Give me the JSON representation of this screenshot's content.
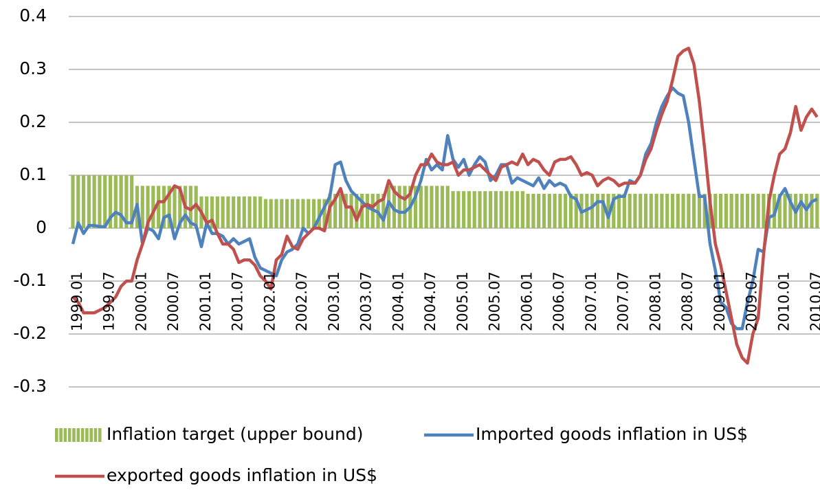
{
  "chart_data": {
    "type": "combo",
    "categories": [
      "1999.01",
      null,
      null,
      null,
      null,
      null,
      "1999.07",
      null,
      null,
      null,
      null,
      null,
      "2000.01",
      null,
      null,
      null,
      null,
      null,
      "2000.07",
      null,
      null,
      null,
      null,
      null,
      "2001.01",
      null,
      null,
      null,
      null,
      null,
      "2001.07",
      null,
      null,
      null,
      null,
      null,
      "2002.01",
      null,
      null,
      null,
      null,
      null,
      "2002.07",
      null,
      null,
      null,
      null,
      null,
      "2003.01",
      null,
      null,
      null,
      null,
      null,
      "2003.07",
      null,
      null,
      null,
      null,
      null,
      "2004.01",
      null,
      null,
      null,
      null,
      null,
      "2004.07",
      null,
      null,
      null,
      null,
      null,
      "2005.01",
      null,
      null,
      null,
      null,
      null,
      "2005.07",
      null,
      null,
      null,
      null,
      null,
      "2006.01",
      null,
      null,
      null,
      null,
      null,
      "2006.07",
      null,
      null,
      null,
      null,
      null,
      "2007.01",
      null,
      null,
      null,
      null,
      null,
      "2007.07",
      null,
      null,
      null,
      null,
      null,
      "2008.01",
      null,
      null,
      null,
      null,
      null,
      "2008.07",
      null,
      null,
      null,
      null,
      null,
      "2009.01",
      null,
      null,
      null,
      null,
      null,
      "2009.07",
      null,
      null,
      null,
      null,
      null,
      "2010.01",
      null,
      null,
      null,
      null,
      null,
      "2010.07",
      null
    ],
    "series": [
      {
        "name": "Inflation target (upper bound)",
        "type": "bar",
        "color": "#9bbb59",
        "values": [
          0.1,
          0.1,
          0.1,
          0.1,
          0.1,
          0.1,
          0.1,
          0.1,
          0.1,
          0.1,
          0.1,
          0.1,
          0.08,
          0.08,
          0.08,
          0.08,
          0.08,
          0.08,
          0.08,
          0.08,
          0.08,
          0.08,
          0.08,
          0.08,
          0.06,
          0.06,
          0.06,
          0.06,
          0.06,
          0.06,
          0.06,
          0.06,
          0.06,
          0.06,
          0.06,
          0.06,
          0.055,
          0.055,
          0.055,
          0.055,
          0.055,
          0.055,
          0.055,
          0.055,
          0.055,
          0.055,
          0.055,
          0.055,
          0.065,
          0.065,
          0.065,
          0.065,
          0.065,
          0.065,
          0.065,
          0.065,
          0.065,
          0.065,
          0.065,
          0.08,
          0.08,
          0.08,
          0.08,
          0.08,
          0.08,
          0.08,
          0.08,
          0.08,
          0.08,
          0.08,
          0.08,
          0.07,
          0.07,
          0.07,
          0.07,
          0.07,
          0.07,
          0.07,
          0.07,
          0.07,
          0.07,
          0.07,
          0.07,
          0.07,
          0.07,
          0.065,
          0.065,
          0.065,
          0.065,
          0.065,
          0.065,
          0.065,
          0.065,
          0.065,
          0.065,
          0.065,
          0.065,
          0.065,
          0.065,
          0.065,
          0.065,
          0.065,
          0.065,
          0.065,
          0.065,
          0.065,
          0.065,
          0.065,
          0.065,
          0.065,
          0.065,
          0.065,
          0.065,
          0.065,
          0.065,
          0.065,
          0.065,
          0.065,
          0.065,
          0.065,
          0.065,
          0.065,
          0.065,
          0.065,
          0.065,
          0.065,
          0.065,
          0.065,
          0.065,
          0.065,
          0.065,
          0.065,
          0.065,
          0.065,
          0.065,
          0.065,
          0.065,
          0.065,
          0.065,
          0.065
        ]
      },
      {
        "name": "Imported goods inflation in US$",
        "type": "line",
        "color": "#4f81bd",
        "values": [
          -0.03,
          0.01,
          -0.01,
          0.005,
          0.005,
          0.003,
          0.003,
          0.02,
          0.03,
          0.025,
          0.01,
          0.01,
          0.045,
          -0.03,
          0.0,
          -0.005,
          -0.02,
          0.02,
          0.025,
          -0.02,
          0.01,
          0.025,
          0.01,
          0.005,
          -0.035,
          0.01,
          -0.01,
          -0.01,
          -0.015,
          -0.03,
          -0.02,
          -0.03,
          -0.025,
          -0.02,
          -0.055,
          -0.075,
          -0.08,
          -0.085,
          -0.09,
          -0.06,
          -0.045,
          -0.04,
          -0.03,
          0.0,
          -0.01,
          0.0,
          0.02,
          0.04,
          0.06,
          0.12,
          0.125,
          0.09,
          0.07,
          0.06,
          0.05,
          0.04,
          0.035,
          0.03,
          0.015,
          0.05,
          0.035,
          0.03,
          0.03,
          0.04,
          0.06,
          0.09,
          0.13,
          0.11,
          0.12,
          0.11,
          0.175,
          0.13,
          0.115,
          0.13,
          0.1,
          0.12,
          0.135,
          0.125,
          0.09,
          0.1,
          0.12,
          0.12,
          0.085,
          0.095,
          0.09,
          0.085,
          0.08,
          0.095,
          0.075,
          0.09,
          0.08,
          0.085,
          0.08,
          0.06,
          0.055,
          0.03,
          0.035,
          0.04,
          0.05,
          0.05,
          0.02,
          0.055,
          0.06,
          0.06,
          0.09,
          0.085,
          0.1,
          0.14,
          0.16,
          0.2,
          0.23,
          0.25,
          0.265,
          0.255,
          0.25,
          0.2,
          0.13,
          0.06,
          0.06,
          -0.03,
          -0.08,
          -0.14,
          -0.15,
          -0.18,
          -0.19,
          -0.19,
          -0.14,
          -0.1,
          -0.04,
          -0.045,
          0.02,
          0.025,
          0.06,
          0.075,
          0.05,
          0.03,
          0.05,
          0.035,
          0.05,
          0.055
        ]
      },
      {
        "name": "exported goods inflation in US$",
        "type": "line",
        "color": "#c0504d",
        "values": [
          -0.13,
          -0.14,
          -0.16,
          -0.16,
          -0.16,
          -0.155,
          -0.15,
          -0.14,
          -0.13,
          -0.11,
          -0.1,
          -0.1,
          -0.06,
          -0.03,
          0.01,
          0.03,
          0.05,
          0.05,
          0.065,
          0.08,
          0.075,
          0.04,
          0.035,
          0.045,
          0.03,
          0.01,
          0.015,
          -0.01,
          -0.03,
          -0.03,
          -0.04,
          -0.065,
          -0.06,
          -0.06,
          -0.07,
          -0.09,
          -0.1,
          -0.115,
          -0.06,
          -0.05,
          -0.015,
          -0.035,
          -0.04,
          -0.02,
          -0.01,
          0.0,
          0.0,
          -0.005,
          0.04,
          0.055,
          0.075,
          0.04,
          0.04,
          0.015,
          0.04,
          0.045,
          0.04,
          0.05,
          0.055,
          0.09,
          0.07,
          0.06,
          0.055,
          0.065,
          0.1,
          0.12,
          0.12,
          0.14,
          0.125,
          0.12,
          0.12,
          0.125,
          0.1,
          0.11,
          0.11,
          0.115,
          0.12,
          0.11,
          0.1,
          0.09,
          0.115,
          0.12,
          0.125,
          0.12,
          0.14,
          0.12,
          0.13,
          0.125,
          0.11,
          0.1,
          0.125,
          0.13,
          0.13,
          0.135,
          0.12,
          0.1,
          0.105,
          0.1,
          0.08,
          0.09,
          0.095,
          0.09,
          0.08,
          0.085,
          0.085,
          0.085,
          0.1,
          0.13,
          0.15,
          0.185,
          0.215,
          0.24,
          0.28,
          0.325,
          0.335,
          0.34,
          0.31,
          0.24,
          0.15,
          0.05,
          -0.03,
          -0.07,
          -0.12,
          -0.17,
          -0.22,
          -0.245,
          -0.255,
          -0.2,
          -0.17,
          -0.05,
          0.05,
          0.1,
          0.14,
          0.15,
          0.18,
          0.23,
          0.185,
          0.21,
          0.225,
          0.21
        ]
      }
    ],
    "ylim": [
      -0.3,
      0.4
    ],
    "yticks": [
      -0.3,
      -0.2,
      -0.1,
      0,
      0.1,
      0.2,
      0.3,
      0.4
    ],
    "grid": true,
    "legend": "bottom"
  }
}
